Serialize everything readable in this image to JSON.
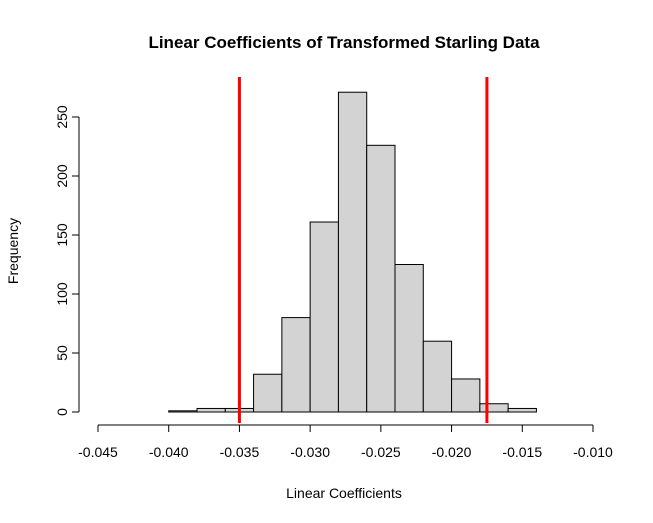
{
  "chart_data": {
    "type": "bar",
    "title": "Linear Coefficients of Transformed Starling Data",
    "xlabel": "Linear Coefficients",
    "ylabel": "Frequency",
    "bins": [
      {
        "from": -0.04,
        "to": -0.038,
        "count": 1
      },
      {
        "from": -0.038,
        "to": -0.036,
        "count": 3
      },
      {
        "from": -0.036,
        "to": -0.034,
        "count": 3
      },
      {
        "from": -0.034,
        "to": -0.032,
        "count": 32
      },
      {
        "from": -0.032,
        "to": -0.03,
        "count": 80
      },
      {
        "from": -0.03,
        "to": -0.028,
        "count": 161
      },
      {
        "from": -0.028,
        "to": -0.026,
        "count": 271
      },
      {
        "from": -0.026,
        "to": -0.024,
        "count": 226
      },
      {
        "from": -0.024,
        "to": -0.022,
        "count": 125
      },
      {
        "from": -0.022,
        "to": -0.02,
        "count": 60
      },
      {
        "from": -0.02,
        "to": -0.018,
        "count": 28
      },
      {
        "from": -0.018,
        "to": -0.016,
        "count": 7
      },
      {
        "from": -0.016,
        "to": -0.014,
        "count": 3
      }
    ],
    "xlim": [
      -0.045,
      -0.01
    ],
    "ylim": [
      0,
      250
    ],
    "x_ticks": [
      "-0.045",
      "-0.040",
      "-0.035",
      "-0.030",
      "-0.025",
      "-0.020",
      "-0.015",
      "-0.010"
    ],
    "y_ticks": [
      "0",
      "50",
      "100",
      "150",
      "200",
      "250"
    ],
    "reference_lines": [
      -0.035,
      -0.0175
    ],
    "colors": {
      "bar_fill": "#d3d3d3",
      "bar_stroke": "#000000",
      "reference_line": "#ff0000"
    },
    "grid": false,
    "legend": "none"
  }
}
